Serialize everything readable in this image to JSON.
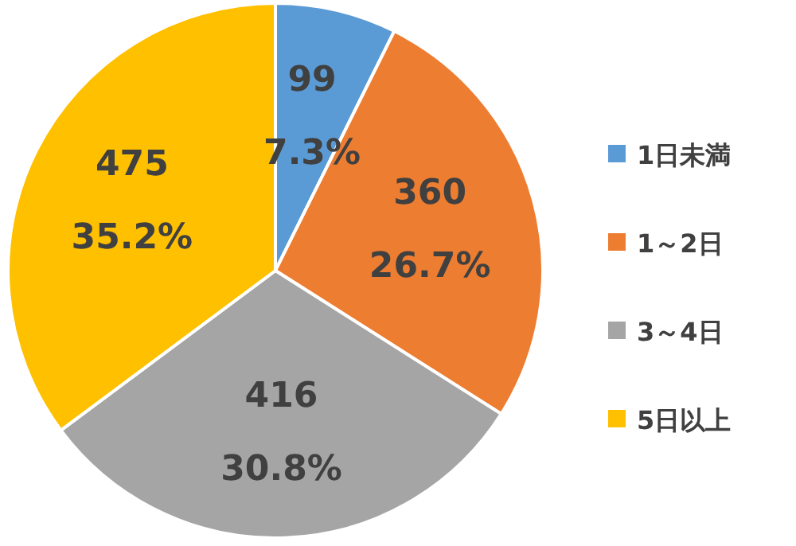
{
  "chart_data": {
    "type": "pie",
    "categories": [
      "1日未満",
      "1～2日",
      "3～4日",
      "5日以上"
    ],
    "values": [
      99,
      360,
      416,
      475
    ],
    "colors": [
      "#5b9bd5",
      "#ed7d31",
      "#a5a5a5",
      "#ffc000"
    ],
    "value_labels": [
      "99\n7.3%",
      "360\n26.7%",
      "416\n30.8%",
      "475\n35.2%"
    ],
    "legend": "right"
  }
}
